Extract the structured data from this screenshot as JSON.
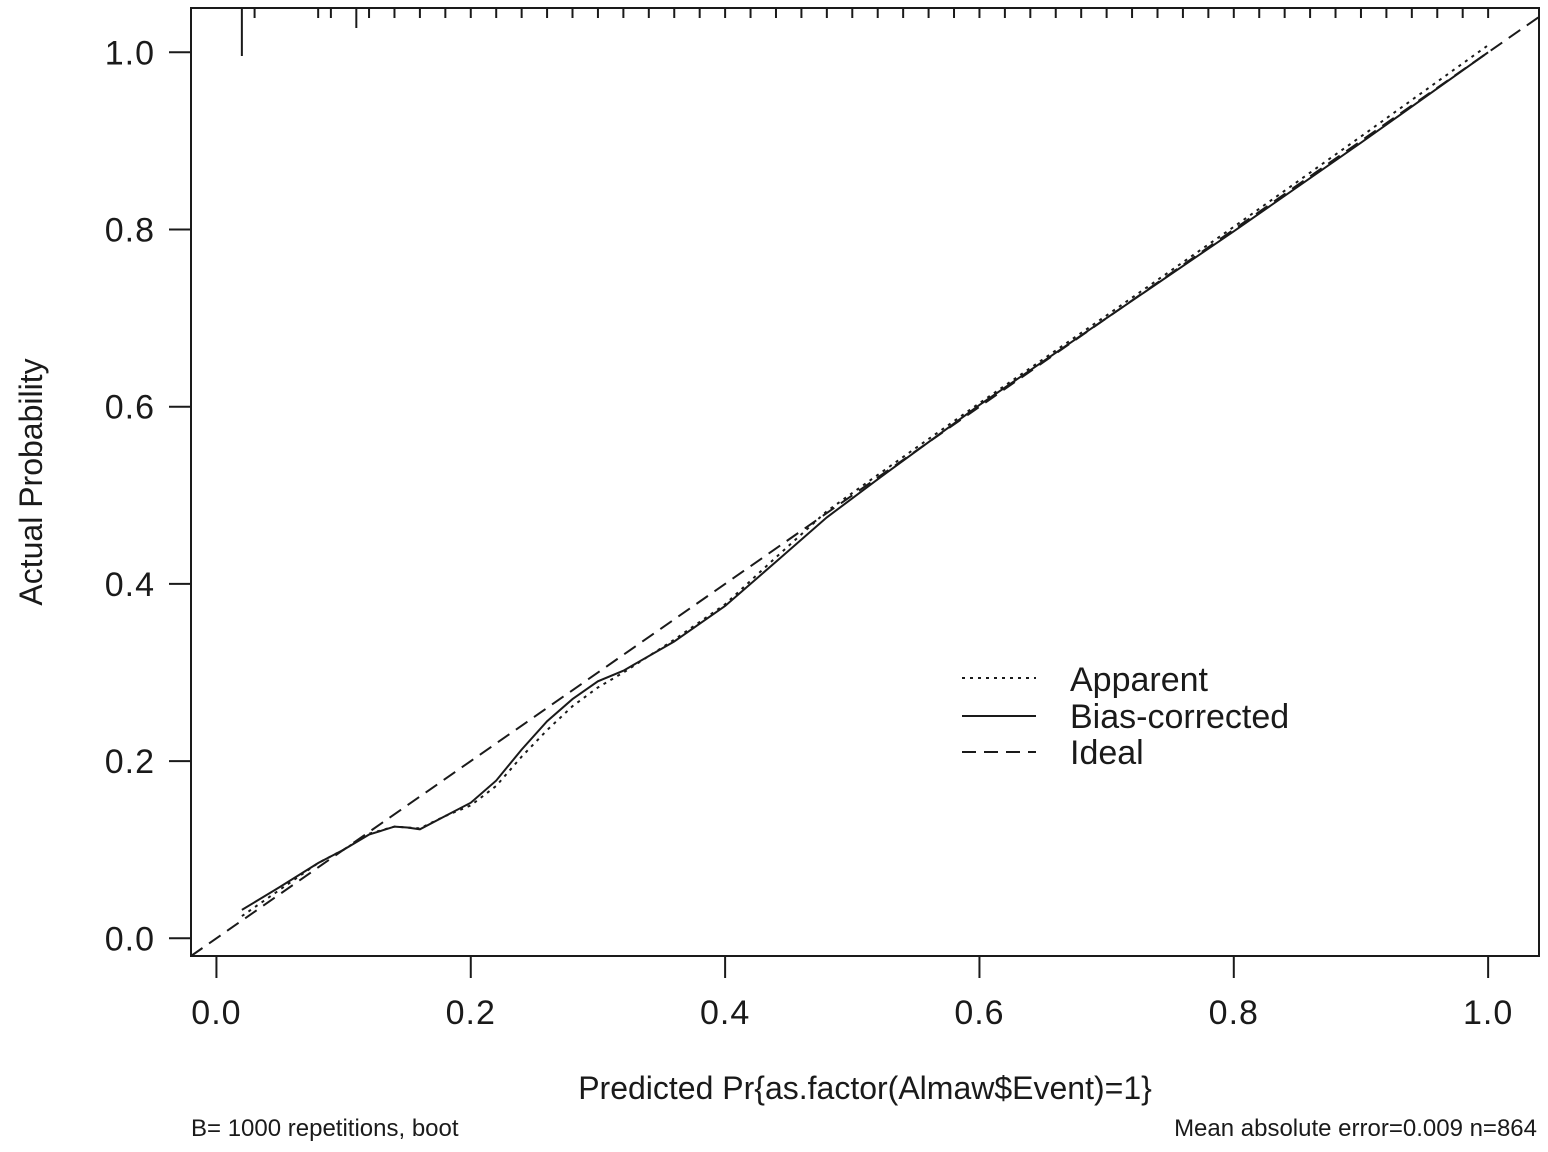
{
  "chart_data": {
    "type": "line",
    "xlabel": "Predicted Pr{as.factor(Almaw$Event)=1}",
    "ylabel": "Actual Probability",
    "xlim": [
      -0.02,
      1.04
    ],
    "ylim": [
      -0.02,
      1.05
    ],
    "x_ticks": [
      0.0,
      0.2,
      0.4,
      0.6,
      0.8,
      1.0
    ],
    "y_ticks": [
      0.0,
      0.2,
      0.4,
      0.6,
      0.8,
      1.0
    ],
    "x_tick_labels": [
      "0.0",
      "0.2",
      "0.4",
      "0.6",
      "0.8",
      "1.0"
    ],
    "y_tick_labels": [
      "0.0",
      "0.2",
      "0.4",
      "0.6",
      "0.8",
      "1.0"
    ],
    "grid": false,
    "legend": {
      "placement": "bottom-right"
    },
    "series": [
      {
        "name": "Apparent",
        "style": "dotted",
        "x": [
          0.02,
          0.05,
          0.08,
          0.1,
          0.12,
          0.14,
          0.16,
          0.18,
          0.2,
          0.22,
          0.24,
          0.26,
          0.28,
          0.3,
          0.32,
          0.36,
          0.4,
          0.44,
          0.48,
          0.52,
          0.6,
          0.7,
          0.8,
          0.9,
          1.0
        ],
        "y": [
          0.025,
          0.055,
          0.085,
          0.1,
          0.118,
          0.126,
          0.124,
          0.138,
          0.15,
          0.172,
          0.205,
          0.235,
          0.262,
          0.283,
          0.3,
          0.337,
          0.377,
          0.43,
          0.482,
          0.523,
          0.604,
          0.703,
          0.803,
          0.905,
          1.008
        ]
      },
      {
        "name": "Bias-corrected",
        "style": "solid",
        "x": [
          0.02,
          0.05,
          0.08,
          0.1,
          0.12,
          0.14,
          0.15,
          0.16,
          0.18,
          0.2,
          0.22,
          0.24,
          0.26,
          0.28,
          0.3,
          0.32,
          0.36,
          0.4,
          0.44,
          0.48,
          0.52,
          0.6,
          0.7,
          0.8,
          0.9,
          1.0
        ],
        "y": [
          0.032,
          0.058,
          0.085,
          0.1,
          0.117,
          0.126,
          0.125,
          0.123,
          0.138,
          0.153,
          0.178,
          0.213,
          0.245,
          0.27,
          0.29,
          0.302,
          0.335,
          0.375,
          0.425,
          0.475,
          0.518,
          0.602,
          0.7,
          0.798,
          0.898,
          1.0
        ]
      },
      {
        "name": "Ideal",
        "style": "dashed",
        "x": [
          -0.02,
          1.04
        ],
        "y": [
          -0.02,
          1.04
        ]
      }
    ],
    "rug_top": [
      0.02,
      0.03,
      0.08,
      0.09,
      0.11,
      0.12,
      0.14,
      0.16,
      0.18,
      0.2,
      0.22,
      0.24,
      0.26,
      0.28,
      0.3,
      0.32,
      0.34,
      0.36,
      0.38,
      0.4,
      0.42,
      0.44,
      0.46,
      0.48,
      0.5,
      0.52,
      0.54,
      0.56,
      0.58,
      0.6,
      0.62,
      0.64,
      0.66,
      0.68,
      0.7,
      0.72,
      0.74,
      0.76,
      0.78,
      0.8,
      0.82,
      0.84,
      0.86,
      0.88,
      0.9,
      0.92,
      0.94,
      0.96,
      0.98,
      1.0
    ],
    "footnote_left": "B= 1000 repetitions, boot",
    "footnote_right": "Mean absolute error=0.009 n=864"
  }
}
